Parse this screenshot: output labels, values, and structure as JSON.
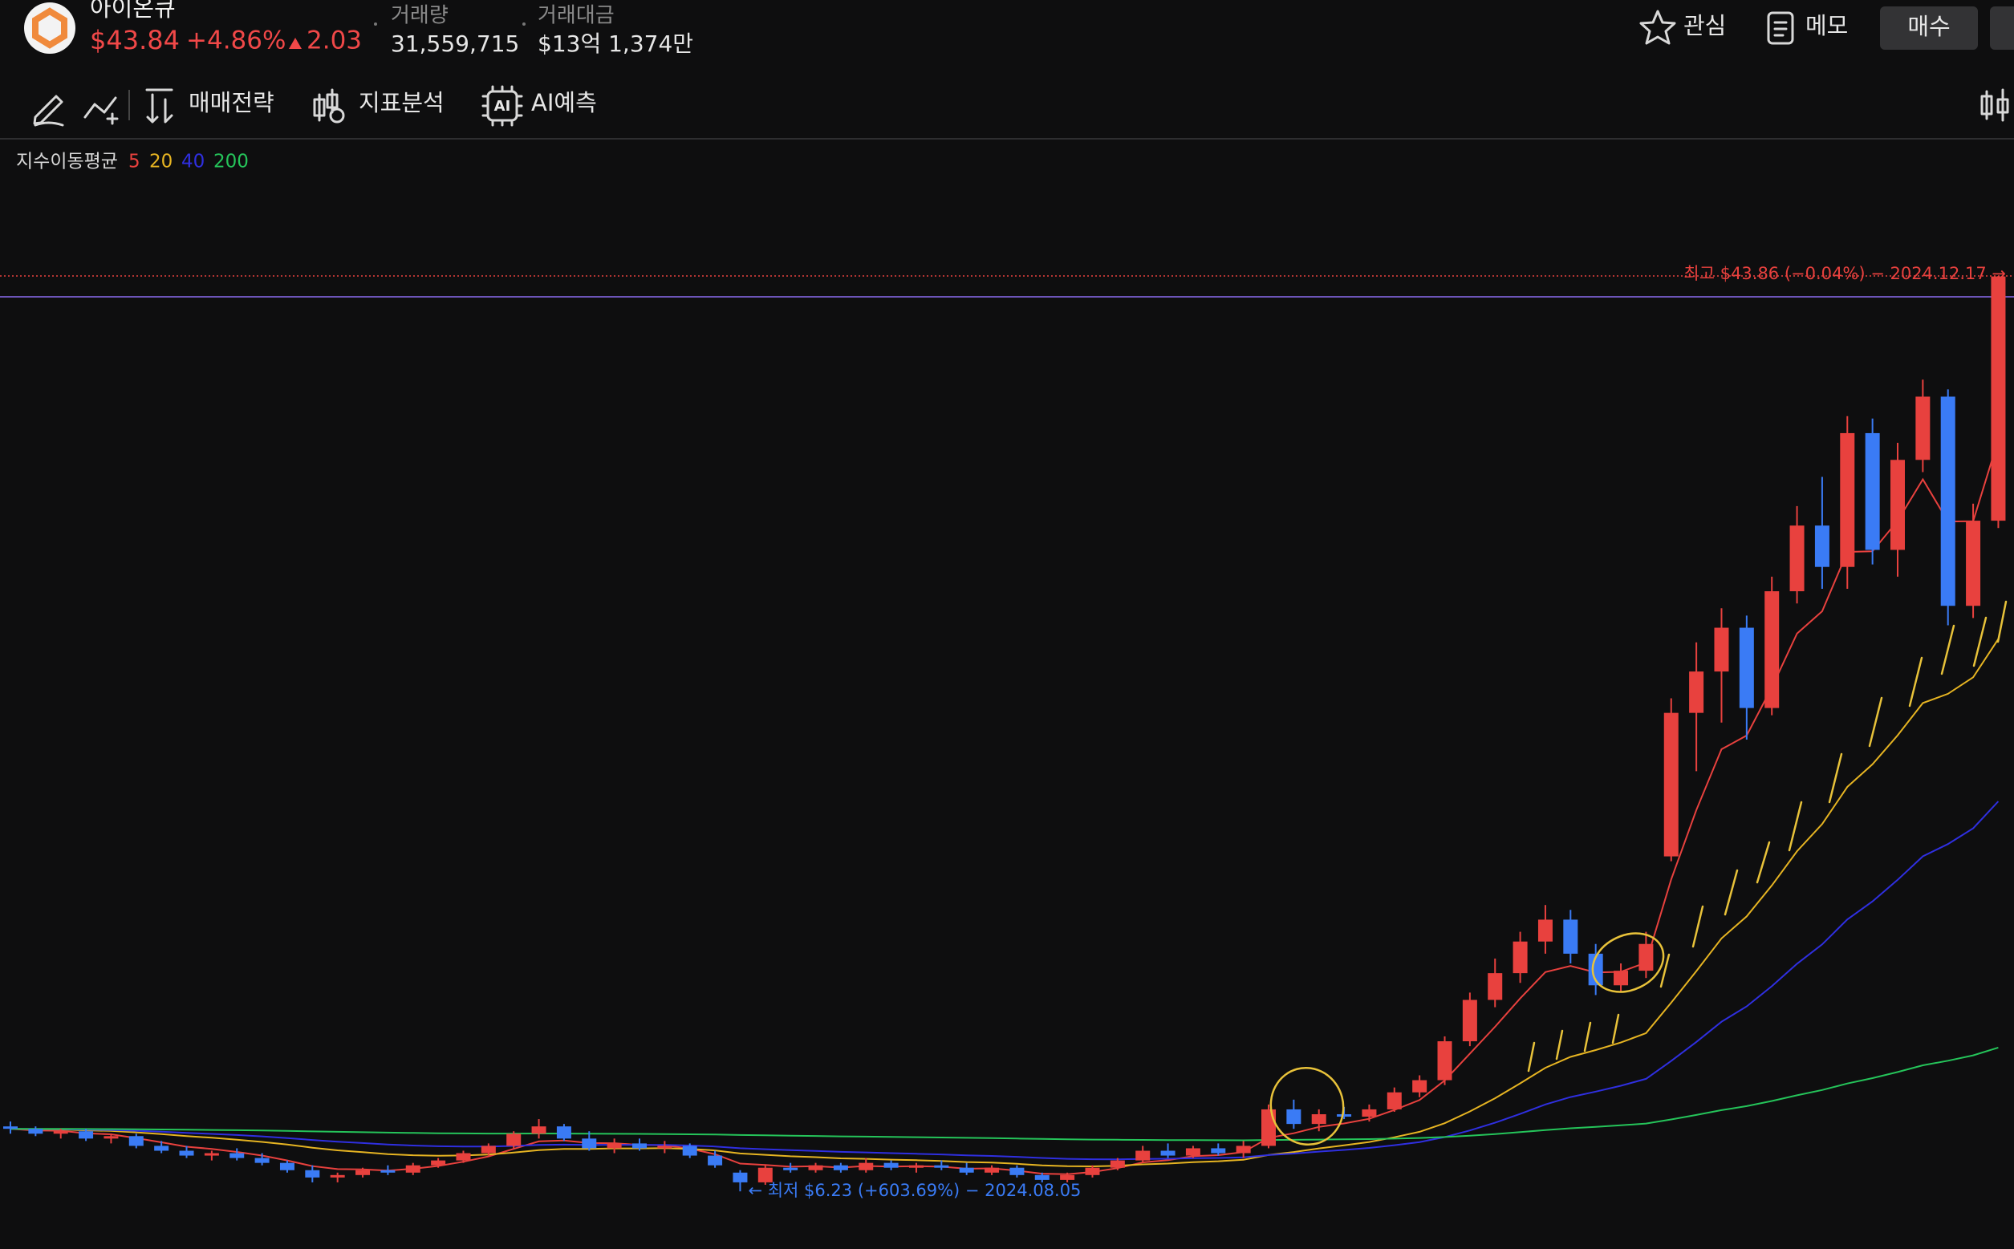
{
  "header": {
    "name": "아이온큐",
    "price": "$43.84",
    "change_pct": "+4.86%",
    "change": "2.03",
    "volume_label": "거래량",
    "volume": "31,559,715",
    "amount_label": "거래대금",
    "amount": "$13억 1,374만",
    "buttons": [
      "관심",
      "메모",
      "매수"
    ]
  },
  "toolbar": [
    "매매전략",
    "지표분석",
    "AI예측"
  ],
  "chart_data": {
    "type": "candlestick",
    "ema": {
      "label": "지수이동평균",
      "periods": [
        5,
        20,
        40,
        200
      ],
      "colors": [
        "#e8413e",
        "#e6b422",
        "#2f2fe0",
        "#25c45a"
      ]
    },
    "up_color": "#e8413e",
    "down_color": "#3a7bf5",
    "ylim": [
      3.86,
      49.5
    ],
    "high_label": "최고 $43.86 (−0.04%) − 2024.12.17 →",
    "low_label": "← 최저 $6.23 (+603.69%) − 2024.08.05",
    "candles": [
      [
        8.9,
        9.1,
        8.6,
        8.8
      ],
      [
        8.8,
        8.9,
        8.5,
        8.6
      ],
      [
        8.6,
        8.8,
        8.4,
        8.7
      ],
      [
        8.7,
        8.8,
        8.3,
        8.4
      ],
      [
        8.4,
        8.6,
        8.2,
        8.5
      ],
      [
        8.5,
        8.6,
        8.0,
        8.1
      ],
      [
        8.1,
        8.3,
        7.8,
        7.9
      ],
      [
        7.9,
        8.1,
        7.6,
        7.7
      ],
      [
        7.7,
        7.9,
        7.5,
        7.8
      ],
      [
        7.8,
        8.0,
        7.5,
        7.6
      ],
      [
        7.6,
        7.8,
        7.3,
        7.4
      ],
      [
        7.4,
        7.5,
        7.0,
        7.1
      ],
      [
        7.1,
        7.3,
        6.6,
        6.8
      ],
      [
        6.8,
        7.0,
        6.6,
        6.9
      ],
      [
        6.9,
        7.2,
        6.8,
        7.1
      ],
      [
        7.1,
        7.3,
        6.9,
        7.0
      ],
      [
        7.0,
        7.4,
        6.9,
        7.3
      ],
      [
        7.3,
        7.6,
        7.2,
        7.5
      ],
      [
        7.5,
        7.9,
        7.4,
        7.8
      ],
      [
        7.8,
        8.2,
        7.7,
        8.1
      ],
      [
        8.1,
        8.7,
        8.0,
        8.6
      ],
      [
        8.6,
        9.2,
        8.4,
        8.9
      ],
      [
        8.9,
        9.0,
        8.3,
        8.4
      ],
      [
        8.4,
        8.7,
        7.9,
        8.0
      ],
      [
        8.0,
        8.4,
        7.8,
        8.2
      ],
      [
        8.2,
        8.4,
        7.9,
        8.0
      ],
      [
        8.0,
        8.3,
        7.8,
        8.1
      ],
      [
        8.1,
        8.2,
        7.6,
        7.7
      ],
      [
        7.7,
        7.9,
        7.2,
        7.3
      ],
      [
        7.0,
        7.1,
        6.23,
        6.6
      ],
      [
        6.6,
        7.3,
        6.5,
        7.2
      ],
      [
        7.2,
        7.4,
        7.0,
        7.1
      ],
      [
        7.1,
        7.4,
        7.0,
        7.3
      ],
      [
        7.3,
        7.4,
        7.0,
        7.1
      ],
      [
        7.1,
        7.6,
        7.0,
        7.4
      ],
      [
        7.4,
        7.5,
        7.1,
        7.2
      ],
      [
        7.2,
        7.4,
        7.0,
        7.3
      ],
      [
        7.3,
        7.5,
        7.1,
        7.2
      ],
      [
        7.2,
        7.4,
        6.9,
        7.0
      ],
      [
        7.0,
        7.3,
        6.9,
        7.2
      ],
      [
        7.2,
        7.3,
        6.8,
        6.9
      ],
      [
        6.9,
        7.0,
        6.6,
        6.7
      ],
      [
        6.7,
        7.0,
        6.6,
        6.9
      ],
      [
        6.9,
        7.3,
        6.8,
        7.2
      ],
      [
        7.2,
        7.6,
        7.1,
        7.5
      ],
      [
        7.5,
        8.1,
        7.4,
        7.9
      ],
      [
        7.9,
        8.2,
        7.6,
        7.7
      ],
      [
        7.7,
        8.1,
        7.6,
        8.0
      ],
      [
        8.0,
        8.2,
        7.7,
        7.8
      ],
      [
        7.8,
        8.3,
        7.6,
        8.1
      ],
      [
        8.1,
        9.8,
        8.0,
        9.6
      ],
      [
        9.6,
        10.0,
        8.8,
        9.0
      ],
      [
        9.0,
        9.6,
        8.7,
        9.4
      ],
      [
        9.4,
        9.7,
        9.2,
        9.3
      ],
      [
        9.3,
        9.8,
        9.1,
        9.6
      ],
      [
        9.6,
        10.5,
        9.5,
        10.3
      ],
      [
        10.3,
        11.0,
        10.1,
        10.8
      ],
      [
        10.8,
        12.6,
        10.6,
        12.4
      ],
      [
        12.4,
        14.4,
        12.2,
        14.1
      ],
      [
        14.1,
        15.8,
        13.8,
        15.2
      ],
      [
        15.2,
        16.9,
        14.8,
        16.5
      ],
      [
        16.5,
        18.0,
        16.0,
        17.4
      ],
      [
        17.4,
        17.8,
        15.6,
        16.0
      ],
      [
        16.0,
        16.4,
        14.3,
        14.7
      ],
      [
        14.7,
        15.6,
        14.4,
        15.3
      ],
      [
        15.3,
        16.9,
        15.0,
        16.4
      ],
      [
        20.0,
        26.5,
        19.8,
        25.9
      ],
      [
        25.9,
        28.8,
        23.5,
        27.6
      ],
      [
        27.6,
        30.2,
        25.5,
        29.4
      ],
      [
        29.4,
        29.9,
        24.8,
        26.1
      ],
      [
        26.1,
        31.5,
        25.8,
        30.9
      ],
      [
        30.9,
        34.4,
        30.4,
        33.6
      ],
      [
        33.6,
        35.6,
        31.0,
        31.9
      ],
      [
        31.9,
        38.1,
        31.0,
        37.4
      ],
      [
        37.4,
        38.0,
        32.0,
        32.6
      ],
      [
        32.6,
        37.0,
        31.5,
        36.3
      ],
      [
        36.3,
        39.6,
        35.8,
        38.9
      ],
      [
        38.9,
        39.2,
        29.5,
        30.3
      ],
      [
        30.3,
        34.5,
        29.8,
        33.8
      ],
      [
        33.8,
        43.86,
        33.5,
        43.84
      ]
    ]
  }
}
